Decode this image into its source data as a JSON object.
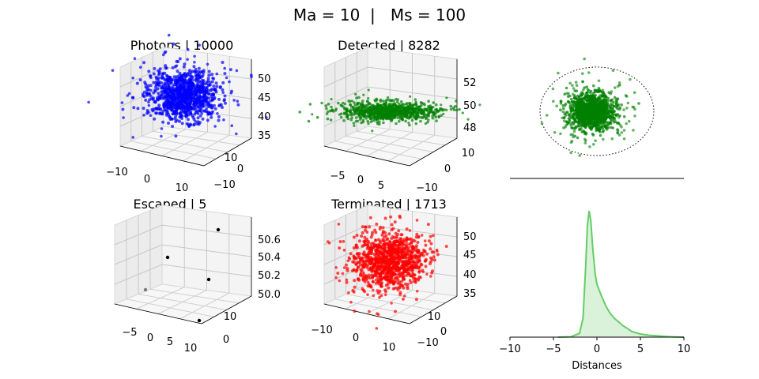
{
  "suptitle": "Ma = 10  |   Ms = 100",
  "chart_data": [
    {
      "type": "scatter",
      "title": "Photons | 10000",
      "color": "#0000ff",
      "x_ticks": [
        "−10",
        "0",
        "10"
      ],
      "y_ticks": [
        "10",
        "0",
        "−10"
      ],
      "z_ticks": [
        "50",
        "45",
        "40",
        "35"
      ],
      "xlim": [
        -12,
        12
      ],
      "ylim": [
        -12,
        12
      ],
      "zlim": [
        33,
        51
      ],
      "points": "dense cloud centered near (0, 0, 45)"
    },
    {
      "type": "scatter",
      "title": "Detected | 8282",
      "color": "#008000",
      "x_ticks": [
        "−5",
        "0",
        "5"
      ],
      "y_ticks": [
        "10",
        "0",
        "−10"
      ],
      "z_ticks": [
        "52",
        "50",
        "48"
      ],
      "xlim": [
        -8,
        8
      ],
      "ylim": [
        -12,
        12
      ],
      "zlim": [
        47,
        53
      ],
      "points": "flattened cloud centered near (0, 0, 50)"
    },
    {
      "type": "scatter",
      "title": "",
      "color": "#008000",
      "note": "top-down projection of detected photons inside dotted circular boundary"
    },
    {
      "type": "scatter",
      "title": "Escaped | 5",
      "color": "#000000",
      "x_ticks": [
        "−5",
        "0",
        "5",
        "10"
      ],
      "y_ticks": [
        "10",
        "0"
      ],
      "z_ticks": [
        "50.6",
        "50.4",
        "50.2",
        "50.0"
      ],
      "xlim": [
        -8,
        11
      ],
      "ylim": [
        -5,
        12
      ],
      "zlim": [
        50.0,
        50.7
      ],
      "points": [
        {
          "x": 5,
          "y": 10,
          "z": 50.65
        },
        {
          "x": -3,
          "y": 8,
          "z": 50.45
        },
        {
          "x": 8,
          "y": 4,
          "z": 50.3
        },
        {
          "x": -6,
          "y": 2,
          "z": 50.1
        },
        {
          "x": 9,
          "y": -3,
          "z": 50.05
        }
      ]
    },
    {
      "type": "scatter",
      "title": "Terminated | 1713",
      "color": "#ff0000",
      "x_ticks": [
        "−10",
        "0",
        "10"
      ],
      "y_ticks": [
        "10",
        "0",
        "−10"
      ],
      "z_ticks": [
        "50",
        "45",
        "40",
        "35"
      ],
      "xlim": [
        -12,
        12
      ],
      "ylim": [
        -12,
        12
      ],
      "zlim": [
        33,
        51
      ],
      "points": "dense cloud centered near (0, 0, 45)"
    },
    {
      "type": "area",
      "title": "",
      "xlabel": "Distances",
      "color": "#66cc66",
      "xlim": [
        -10,
        10
      ],
      "x_ticks": [
        "−10",
        "−5",
        "0",
        "5",
        "10"
      ],
      "x": [
        -4.5,
        -3,
        -2,
        -1.6,
        -1.3,
        -1.1,
        -0.9,
        -0.7,
        -0.5,
        -0.2,
        0,
        0.5,
        1,
        1.5,
        2,
        2.5,
        3,
        3.5,
        4,
        5,
        6,
        7,
        8,
        9,
        10
      ],
      "values": [
        0,
        0.003,
        0.03,
        0.15,
        0.55,
        0.88,
        1.0,
        0.92,
        0.72,
        0.5,
        0.42,
        0.33,
        0.25,
        0.19,
        0.15,
        0.12,
        0.09,
        0.07,
        0.045,
        0.025,
        0.015,
        0.01,
        0.005,
        0.002,
        0
      ]
    }
  ]
}
